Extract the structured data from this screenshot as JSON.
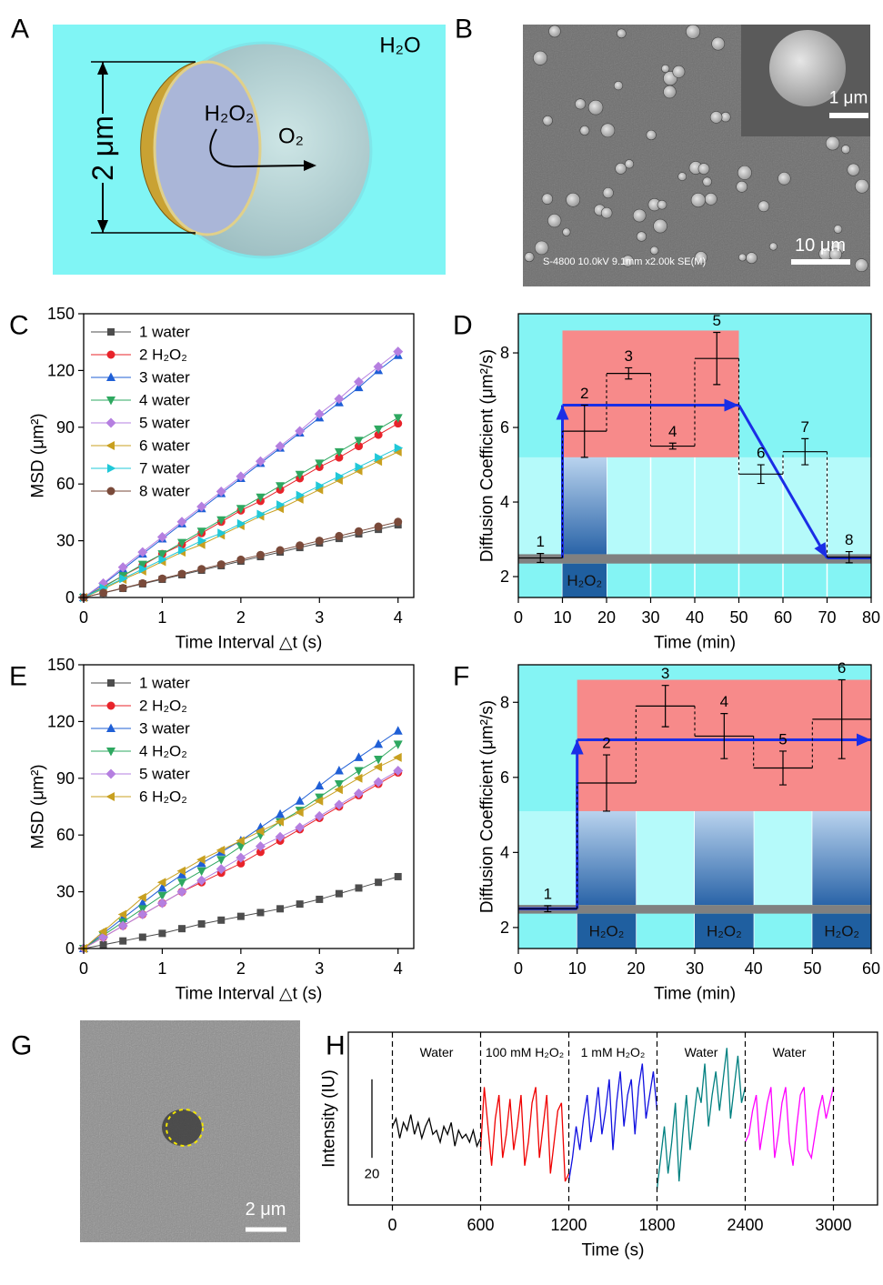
{
  "figure": {
    "panel_labels": [
      "A",
      "B",
      "C",
      "D",
      "E",
      "F",
      "G",
      "H"
    ]
  },
  "diagram_a": {
    "medium": "H₂O",
    "diameter": "2 μm",
    "reactant": "H₂O₂",
    "product": "O₂"
  },
  "image_b": {
    "caption": "S-4800 10.0kV 9.1mm x2.00k SE(M)",
    "inset_scale": "1 μm",
    "scale": "10 μm"
  },
  "image_g": {
    "scale": "2 μm"
  },
  "chart_data": [
    {
      "type": "line",
      "xlabel": "Time Interval △t (s)",
      "ylabel": "MSD (μm²)",
      "xlim": [
        0,
        4.2
      ],
      "ylim": [
        0,
        150
      ],
      "xticks": [
        0,
        1,
        2,
        3,
        4
      ],
      "yticks": [
        0,
        30,
        60,
        90,
        120,
        150
      ],
      "legend": "upper left",
      "markers": true,
      "x": [
        0,
        0.25,
        0.5,
        0.75,
        1,
        1.25,
        1.5,
        1.75,
        2,
        2.25,
        2.5,
        2.75,
        3,
        3.25,
        3.5,
        3.75,
        4
      ],
      "series": [
        {
          "name": "1 water",
          "color": "#4d4d4d",
          "marker": "square",
          "values": [
            0,
            2.4,
            4.8,
            7.2,
            9.6,
            12,
            14.4,
            16.8,
            19.2,
            21.6,
            24,
            26.4,
            28.8,
            31.2,
            33.6,
            36,
            38.4
          ]
        },
        {
          "name": "2 H₂O₂",
          "color": "#e8232a",
          "marker": "circle",
          "values": [
            0,
            5.8,
            11.5,
            17,
            23,
            28,
            34,
            40,
            46,
            51,
            57,
            63,
            69,
            74,
            80,
            86,
            92
          ]
        },
        {
          "name": "3 water",
          "color": "#1f5fd6",
          "marker": "triangle-up",
          "values": [
            0,
            7,
            15,
            23,
            31,
            39,
            47,
            55,
            63,
            71,
            79,
            87,
            95,
            103,
            111,
            120,
            128
          ]
        },
        {
          "name": "4 water",
          "color": "#2ea860",
          "marker": "triangle-down",
          "values": [
            0,
            5.5,
            11.5,
            17.5,
            23,
            29,
            35,
            41,
            47,
            53,
            59,
            65,
            71,
            77,
            83,
            89,
            95
          ]
        },
        {
          "name": "5 water",
          "color": "#b57fe0",
          "marker": "diamond",
          "values": [
            0,
            7.5,
            16,
            24,
            32,
            40,
            48,
            56,
            64,
            72,
            80,
            88,
            97,
            105,
            114,
            122,
            130
          ]
        },
        {
          "name": "6 water",
          "color": "#c8a020",
          "marker": "triangle-left",
          "values": [
            0,
            4.5,
            9.5,
            14,
            19,
            24,
            28,
            33,
            38,
            43,
            47,
            52,
            57,
            62,
            67,
            72,
            77
          ]
        },
        {
          "name": "7 water",
          "color": "#20c8d8",
          "marker": "triangle-right",
          "values": [
            0,
            5,
            10,
            15,
            20,
            25,
            30,
            34,
            39,
            44,
            49,
            54,
            59,
            64,
            69,
            74,
            79
          ]
        },
        {
          "name": "8 water",
          "color": "#7a4a3a",
          "marker": "circle",
          "values": [
            0,
            2.5,
            5,
            7.5,
            10,
            12.5,
            15,
            17.5,
            20,
            22.5,
            25,
            27.5,
            30,
            32.5,
            35,
            37.5,
            40
          ]
        }
      ]
    },
    {
      "type": "errorbar",
      "xlabel": "Time (min)",
      "ylabel": "Diffusion Coefficient (μm²/s)",
      "xlim": [
        0,
        80
      ],
      "ylim": [
        1.44,
        9.05
      ],
      "xticks": [
        0,
        10,
        20,
        30,
        40,
        50,
        60,
        70,
        80
      ],
      "yticks": [
        2,
        4,
        6,
        8
      ],
      "grid": true,
      "x": [
        5,
        15,
        25,
        35,
        45,
        55,
        65,
        75
      ],
      "labels": [
        "1",
        "2",
        "3",
        "4",
        "5",
        "6",
        "7",
        "8"
      ],
      "values": [
        2.5,
        5.9,
        7.45,
        5.5,
        7.85,
        4.75,
        5.35,
        2.52
      ],
      "errors": [
        0.12,
        0.7,
        0.15,
        0.08,
        0.7,
        0.25,
        0.35,
        0.15
      ],
      "color": "#000000",
      "high_region": {
        "x": [
          10,
          50
        ],
        "y": [
          5.2,
          8.6
        ],
        "color": "#f78a8a"
      },
      "baseline_band": {
        "y": [
          2.35,
          2.6
        ],
        "color": "#808080"
      },
      "treatment": {
        "label": "H₂O₂",
        "intervals": [
          [
            10,
            20
          ]
        ],
        "color": "#1f5fa0"
      },
      "trend": {
        "x": [
          10,
          10,
          50,
          70,
          80
        ],
        "y": [
          2.5,
          6.6,
          6.6,
          2.5,
          2.5
        ],
        "color": "#1a2ee6"
      }
    },
    {
      "type": "line",
      "xlabel": "Time Interval △t (s)",
      "ylabel": "MSD (μm²)",
      "xlim": [
        0,
        4.2
      ],
      "ylim": [
        0,
        150
      ],
      "xticks": [
        0,
        1,
        2,
        3,
        4
      ],
      "yticks": [
        0,
        30,
        60,
        90,
        120,
        150
      ],
      "legend": "upper left",
      "markers": true,
      "x": [
        0,
        0.25,
        0.5,
        0.75,
        1,
        1.25,
        1.5,
        1.75,
        2,
        2.25,
        2.5,
        2.75,
        3,
        3.25,
        3.5,
        3.75,
        4
      ],
      "series": [
        {
          "name": "1 water",
          "color": "#4d4d4d",
          "marker": "square",
          "values": [
            0,
            2,
            4,
            6,
            8,
            10.5,
            13,
            15,
            17,
            19,
            21,
            23.5,
            26,
            29,
            32,
            35,
            38
          ]
        },
        {
          "name": "2 H₂O₂",
          "color": "#e8232a",
          "marker": "circle",
          "values": [
            0,
            6,
            12,
            18,
            24,
            30,
            35,
            40,
            45,
            51,
            57,
            63,
            69,
            75,
            81,
            87,
            93
          ]
        },
        {
          "name": "3 water",
          "color": "#1f5fd6",
          "marker": "triangle-up",
          "values": [
            0,
            8,
            16,
            24,
            32,
            39,
            45,
            51,
            57,
            64,
            71,
            78,
            86,
            94,
            101,
            108,
            115
          ]
        },
        {
          "name": "4 H₂O₂",
          "color": "#2ea860",
          "marker": "triangle-down",
          "values": [
            0,
            7,
            14,
            21,
            28,
            35,
            41,
            47,
            54,
            60,
            67,
            73,
            80,
            87,
            94,
            100,
            108
          ]
        },
        {
          "name": "5 water",
          "color": "#b57fe0",
          "marker": "diamond",
          "values": [
            0,
            6,
            12,
            18,
            24,
            30,
            36,
            42,
            48,
            54,
            59,
            64,
            70,
            76,
            82,
            88,
            94
          ]
        },
        {
          "name": "6 H₂O₂",
          "color": "#c8a020",
          "marker": "triangle-left",
          "values": [
            0,
            9,
            18,
            27,
            35,
            41,
            47,
            52,
            57,
            62,
            67,
            72,
            78,
            84,
            90,
            96,
            101
          ]
        }
      ]
    },
    {
      "type": "errorbar",
      "xlabel": "Time (min)",
      "ylabel": "Diffusion Coefficient (μm²/s)",
      "xlim": [
        0,
        60
      ],
      "ylim": [
        1.44,
        9.0
      ],
      "xticks": [
        0,
        10,
        20,
        30,
        40,
        50,
        60
      ],
      "yticks": [
        2,
        4,
        6,
        8
      ],
      "grid": true,
      "x": [
        5,
        15,
        25,
        35,
        45,
        55
      ],
      "labels": [
        "1",
        "2",
        "3",
        "4",
        "5",
        "6"
      ],
      "values": [
        2.5,
        5.85,
        7.9,
        7.1,
        6.25,
        7.55
      ],
      "errors": [
        0.08,
        0.75,
        0.55,
        0.6,
        0.45,
        1.05
      ],
      "color": "#000000",
      "high_region": {
        "x": [
          10,
          60
        ],
        "y": [
          5.1,
          8.6
        ],
        "color": "#f78a8a"
      },
      "baseline_band": {
        "y": [
          2.37,
          2.6
        ],
        "color": "#808080"
      },
      "treatment": {
        "label": "H₂O₂",
        "intervals": [
          [
            10,
            20
          ],
          [
            30,
            40
          ],
          [
            50,
            60
          ]
        ],
        "color": "#1f5fa0"
      },
      "trend": {
        "x": [
          0,
          10,
          10,
          60
        ],
        "y": [
          2.5,
          2.5,
          7.0,
          7.0
        ],
        "color": "#1a2ee6"
      }
    },
    {
      "type": "line",
      "xlabel": "Time (s)",
      "ylabel": "Intensity (IU)",
      "xlim": [
        -300,
        3300
      ],
      "ylim": [
        0,
        44
      ],
      "xticks": [
        0,
        600,
        1200,
        1800,
        2400,
        3000
      ],
      "scale_bar": 20,
      "regions": [
        {
          "label": "Water",
          "start": 0,
          "end": 600
        },
        {
          "label": "100 mM H₂O₂",
          "start": 600,
          "end": 1200
        },
        {
          "label": "1 mM H₂O₂",
          "start": 1200,
          "end": 1800
        },
        {
          "label": "Water",
          "start": 1800,
          "end": 2400
        },
        {
          "label": "Water",
          "start": 2400,
          "end": 3000
        }
      ],
      "series": [
        {
          "color": "#000000",
          "x": [
            0,
            25,
            50,
            75,
            100,
            125,
            150,
            175,
            200,
            225,
            250,
            275,
            300,
            325,
            350,
            375,
            400,
            425,
            450,
            475,
            500,
            525,
            550,
            575,
            600
          ],
          "values": [
            20,
            22,
            17,
            21,
            19,
            23,
            18,
            21,
            17,
            20,
            22,
            18,
            19,
            16,
            20,
            18,
            21,
            15,
            19,
            17,
            18,
            16,
            19,
            15,
            17
          ]
        },
        {
          "color": "#f00000",
          "x": [
            600,
            625,
            650,
            675,
            700,
            725,
            750,
            775,
            800,
            825,
            850,
            875,
            900,
            925,
            950,
            975,
            1000,
            1025,
            1050,
            1075,
            1100,
            1125,
            1150,
            1175,
            1200
          ],
          "values": [
            14,
            30,
            20,
            10,
            22,
            28,
            12,
            18,
            27,
            14,
            20,
            28,
            10,
            16,
            26,
            30,
            12,
            20,
            28,
            8,
            16,
            24,
            26,
            6,
            8
          ]
        },
        {
          "color": "#1010e0",
          "x": [
            1200,
            1225,
            1250,
            1275,
            1300,
            1325,
            1350,
            1375,
            1400,
            1425,
            1450,
            1475,
            1500,
            1525,
            1550,
            1575,
            1600,
            1625,
            1650,
            1675,
            1700,
            1725,
            1750,
            1775,
            1800
          ],
          "values": [
            6,
            12,
            20,
            14,
            22,
            28,
            16,
            22,
            30,
            18,
            24,
            32,
            14,
            26,
            34,
            20,
            28,
            32,
            18,
            30,
            36,
            22,
            28,
            34,
            24
          ]
        },
        {
          "color": "#008080",
          "x": [
            1800,
            1825,
            1850,
            1875,
            1900,
            1925,
            1950,
            1975,
            2000,
            2025,
            2050,
            2075,
            2100,
            2125,
            2150,
            2175,
            2200,
            2225,
            2250,
            2275,
            2300,
            2325,
            2350,
            2375,
            2400
          ],
          "values": [
            4,
            12,
            20,
            8,
            16,
            26,
            6,
            18,
            28,
            14,
            22,
            30,
            26,
            36,
            20,
            28,
            34,
            24,
            32,
            40,
            22,
            30,
            38,
            26,
            30
          ]
        },
        {
          "color": "#ff00ff",
          "x": [
            2400,
            2425,
            2450,
            2475,
            2500,
            2525,
            2550,
            2575,
            2600,
            2625,
            2650,
            2675,
            2700,
            2725,
            2750,
            2775,
            2800,
            2825,
            2850,
            2875,
            2900,
            2925,
            2950,
            2975,
            3000
          ],
          "values": [
            16,
            18,
            24,
            28,
            14,
            20,
            26,
            30,
            12,
            18,
            26,
            30,
            16,
            10,
            20,
            28,
            30,
            14,
            12,
            18,
            24,
            28,
            22,
            26,
            30
          ]
        }
      ]
    }
  ]
}
